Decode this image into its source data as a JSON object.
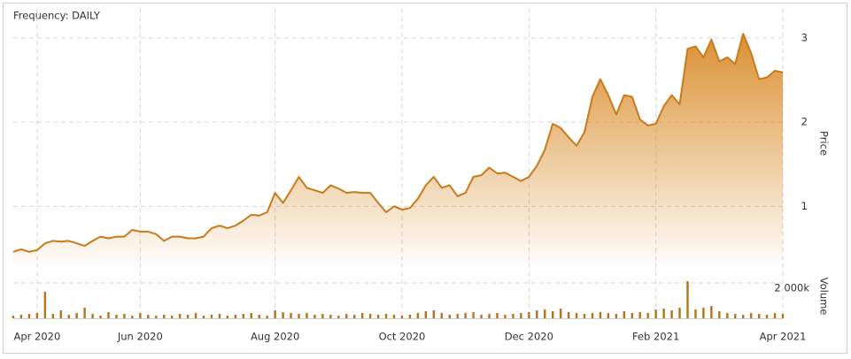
{
  "chart_data": {
    "type": "line",
    "frequency_label": "Frequency: DAILY",
    "categories": [
      null,
      null,
      null,
      "Apr 2020",
      null,
      null,
      null,
      null,
      null,
      null,
      null,
      null,
      null,
      null,
      null,
      null,
      "Jun 2020",
      null,
      null,
      null,
      null,
      null,
      null,
      null,
      null,
      null,
      null,
      null,
      null,
      null,
      null,
      null,
      null,
      "Aug 2020",
      null,
      null,
      null,
      null,
      null,
      null,
      null,
      null,
      null,
      null,
      null,
      null,
      null,
      null,
      null,
      "Oct 2020",
      null,
      null,
      null,
      null,
      null,
      null,
      null,
      null,
      null,
      null,
      null,
      null,
      null,
      null,
      null,
      "Dec 2020",
      null,
      null,
      null,
      null,
      null,
      null,
      null,
      null,
      null,
      null,
      null,
      null,
      null,
      null,
      null,
      "Feb 2021",
      null,
      null,
      null,
      null,
      null,
      null,
      null,
      null,
      null,
      null,
      null,
      null,
      null,
      null,
      null,
      "Apr 2021"
    ],
    "series": [
      {
        "name": "Price",
        "color": "#c97a1a",
        "values": [
          0.46,
          0.49,
          0.46,
          0.48,
          0.56,
          0.59,
          0.58,
          0.59,
          0.56,
          0.53,
          0.59,
          0.64,
          0.62,
          0.64,
          0.64,
          0.72,
          0.7,
          0.7,
          0.67,
          0.59,
          0.64,
          0.64,
          0.62,
          0.62,
          0.64,
          0.74,
          0.77,
          0.74,
          0.77,
          0.83,
          0.9,
          0.89,
          0.93,
          1.16,
          1.04,
          1.19,
          1.35,
          1.22,
          1.19,
          1.16,
          1.25,
          1.21,
          1.16,
          1.17,
          1.16,
          1.16,
          1.04,
          0.93,
          1.0,
          0.96,
          0.98,
          1.09,
          1.25,
          1.35,
          1.22,
          1.25,
          1.12,
          1.16,
          1.35,
          1.37,
          1.46,
          1.39,
          1.4,
          1.35,
          1.3,
          1.35,
          1.48,
          1.67,
          1.98,
          1.93,
          1.82,
          1.72,
          1.88,
          2.3,
          2.51,
          2.32,
          2.09,
          2.32,
          2.3,
          2.03,
          1.96,
          1.98,
          2.19,
          2.32,
          2.21,
          2.87,
          2.9,
          2.77,
          2.98,
          2.72,
          2.77,
          2.69,
          3.05,
          2.82,
          2.51,
          2.53,
          2.61,
          2.59
        ]
      },
      {
        "name": "Volume",
        "type": "bar",
        "axis": "y2",
        "color": "#b8731a",
        "values": [
          150000,
          200000,
          250000,
          300000,
          1500000,
          250000,
          450000,
          200000,
          300000,
          600000,
          250000,
          150000,
          350000,
          200000,
          250000,
          150000,
          300000,
          200000,
          150000,
          200000,
          150000,
          250000,
          200000,
          300000,
          150000,
          200000,
          250000,
          150000,
          200000,
          250000,
          300000,
          200000,
          150000,
          450000,
          350000,
          300000,
          250000,
          300000,
          200000,
          250000,
          200000,
          150000,
          250000,
          200000,
          300000,
          250000,
          200000,
          250000,
          200000,
          150000,
          200000,
          300000,
          400000,
          450000,
          300000,
          200000,
          250000,
          300000,
          350000,
          200000,
          250000,
          300000,
          200000,
          250000,
          300000,
          350000,
          450000,
          500000,
          400000,
          550000,
          350000,
          300000,
          250000,
          300000,
          350000,
          300000,
          250000,
          400000,
          300000,
          350000,
          300000,
          500000,
          550000,
          450000,
          600000,
          2100000,
          500000,
          600000,
          700000,
          400000,
          300000,
          250000,
          200000,
          300000,
          250000,
          200000,
          300000,
          250000
        ]
      }
    ],
    "ylim": [
      0.3,
      3.24
    ],
    "yticks": [
      1,
      2,
      3
    ],
    "y2lim": [
      0,
      2500000
    ],
    "y2ticks": [
      {
        "value": 2000000,
        "label": "2 000k"
      }
    ],
    "grid": true
  }
}
